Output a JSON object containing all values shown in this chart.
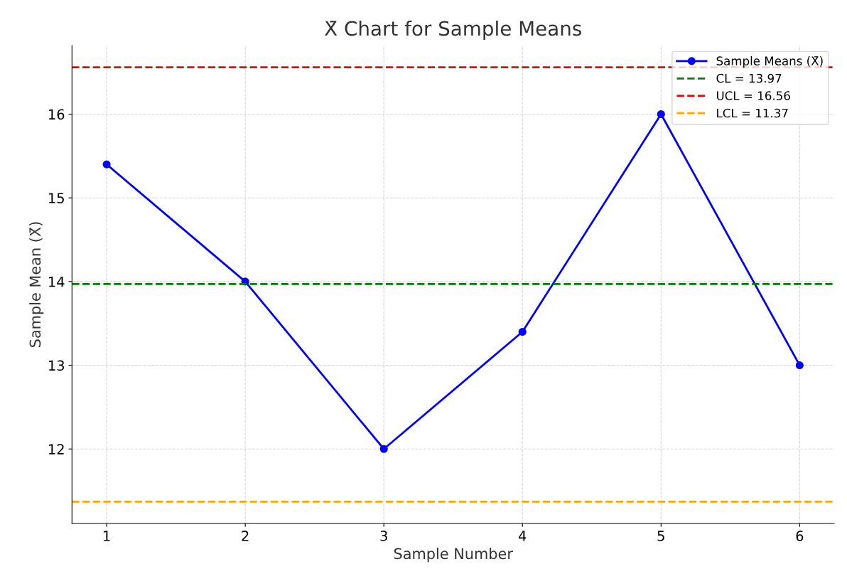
{
  "chart_data": {
    "type": "line",
    "title": "X̄ Chart for Sample Means",
    "xlabel": "Sample Number",
    "ylabel": "Sample Mean (X̄)",
    "x": [
      1,
      2,
      3,
      4,
      5,
      6
    ],
    "series": [
      {
        "name": "Sample Means (X̄)",
        "color": "#0000ff",
        "values": [
          15.4,
          14.0,
          12.0,
          13.4,
          16.0,
          13.0
        ]
      }
    ],
    "ref_lines": [
      {
        "axis": "y",
        "value": 13.97,
        "label": "CL = 13.97",
        "color": "#008000",
        "line_style": "dashed"
      },
      {
        "axis": "y",
        "value": 16.56,
        "label": "UCL = 16.56",
        "color": "#ff0000",
        "line_style": "dashed"
      },
      {
        "axis": "y",
        "value": 11.37,
        "label": "LCL = 11.37",
        "color": "#ffa500",
        "line_style": "dashed"
      }
    ],
    "xlim": [
      0.75,
      6.25
    ],
    "ylim": [
      11.11,
      16.82
    ],
    "xticks": [
      1,
      2,
      3,
      4,
      5,
      6
    ],
    "yticks": [
      12,
      13,
      14,
      15,
      16
    ],
    "grid": true,
    "legend": "top right",
    "marker": "circle",
    "line_style": "solid"
  }
}
